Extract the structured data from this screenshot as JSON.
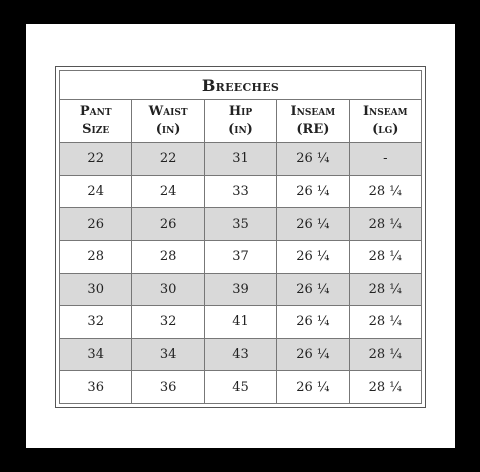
{
  "table": {
    "title": "Breeches",
    "headers": [
      {
        "line1": "Pant",
        "line2": "Size"
      },
      {
        "line1": "Waist",
        "line2": "(in)"
      },
      {
        "line1": "Hip",
        "line2": "(in)"
      },
      {
        "line1": "Inseam",
        "line2": "(RE)"
      },
      {
        "line1": "Inseam",
        "line2": "(lg)"
      }
    ],
    "rows": [
      [
        "22",
        "22",
        "31",
        "26 ¼",
        "-"
      ],
      [
        "24",
        "24",
        "33",
        "26 ¼",
        "28 ¼"
      ],
      [
        "26",
        "26",
        "35",
        "26 ¼",
        "28 ¼"
      ],
      [
        "28",
        "28",
        "37",
        "26 ¼",
        "28 ¼"
      ],
      [
        "30",
        "30",
        "39",
        "26 ¼",
        "28 ¼"
      ],
      [
        "32",
        "32",
        "41",
        "26 ¼",
        "28 ¼"
      ],
      [
        "34",
        "34",
        "43",
        "26 ¼",
        "28 ¼"
      ],
      [
        "36",
        "36",
        "45",
        "26 ¼",
        "28 ¼"
      ]
    ],
    "colors": {
      "shaded_row": "#d9d9d9",
      "border": "#777777",
      "frame": "#000000"
    }
  }
}
